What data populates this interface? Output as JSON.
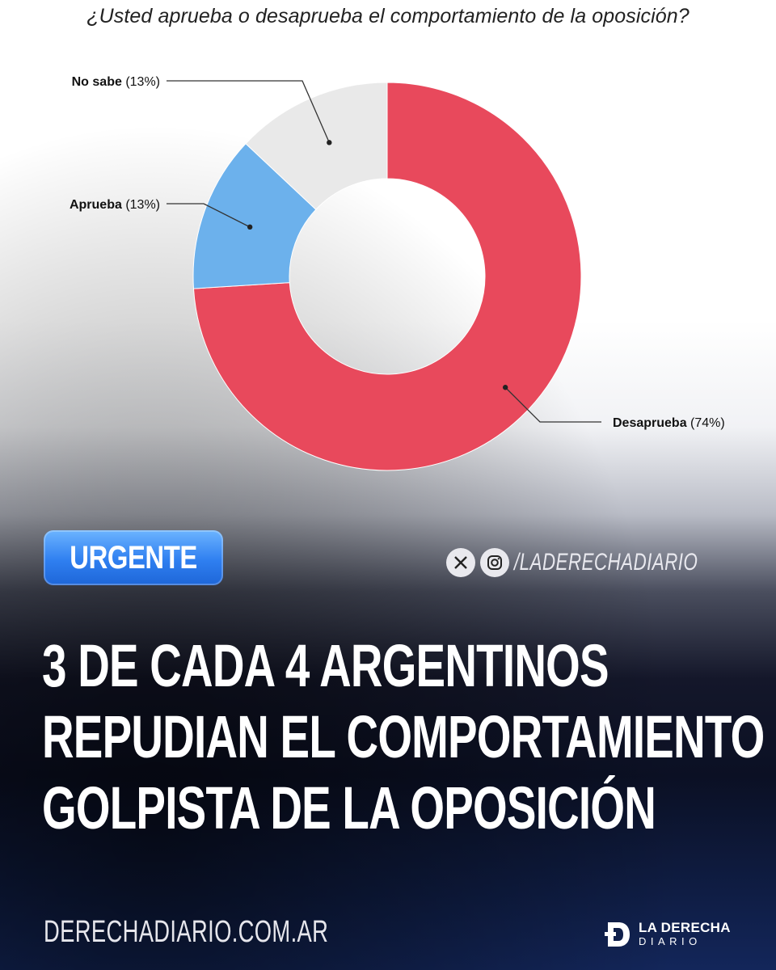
{
  "chart_data": {
    "type": "pie",
    "title": "¿Usted aprueba o desaprueba el comportamiento de la oposición?",
    "categories": [
      "Desaprueba",
      "Aprueba",
      "No sabe"
    ],
    "values": [
      74,
      13,
      13
    ],
    "value_labels": [
      "(74%)",
      "(13%)",
      "(13%)"
    ],
    "colors": [
      "#e8495c",
      "#6cb1ec",
      "#e9e9e9"
    ],
    "donut": true
  },
  "badge": {
    "label": "URGENTE",
    "color": "#2f7ff0"
  },
  "social": {
    "icons": [
      "x-icon",
      "instagram-icon"
    ],
    "handle": "/LADERECHADIARIO"
  },
  "headline": {
    "line1": "3 DE CADA 4 ARGENTINOS",
    "line2": "REPUDIAN EL COMPORTAMIENTO",
    "line3": "GOLPISTA DE LA OPOSICIÓN"
  },
  "footer": {
    "url": "DERECHADIARIO.COM.AR",
    "logo_line1": "LA DERECHA",
    "logo_line2": "DIARIO"
  }
}
